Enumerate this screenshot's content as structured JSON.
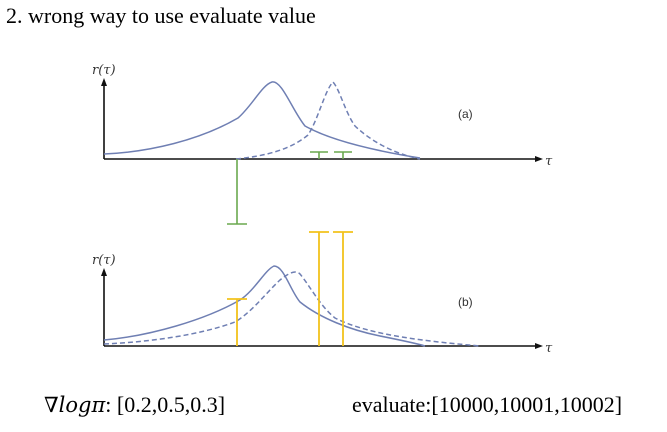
{
  "title": "2. wrong way to use evaluate value",
  "diagram": {
    "y_axis_label": "r(τ)",
    "x_axis_label": "τ",
    "panel_a_label": "(a)",
    "panel_b_label": "(b)",
    "colors": {
      "solid_curve": "#6f7fb3",
      "dashed_curve": "#6f7fb3",
      "green_bars": "#6aa84f",
      "yellow_bars": "#f2c21b",
      "axes": "#111111"
    }
  },
  "bottom": {
    "grad_symbol": "∇logπ",
    "grad_values": ": [0.2,0.5,0.3]",
    "evaluate_text": "evaluate:[10000,10001,10002]"
  }
}
